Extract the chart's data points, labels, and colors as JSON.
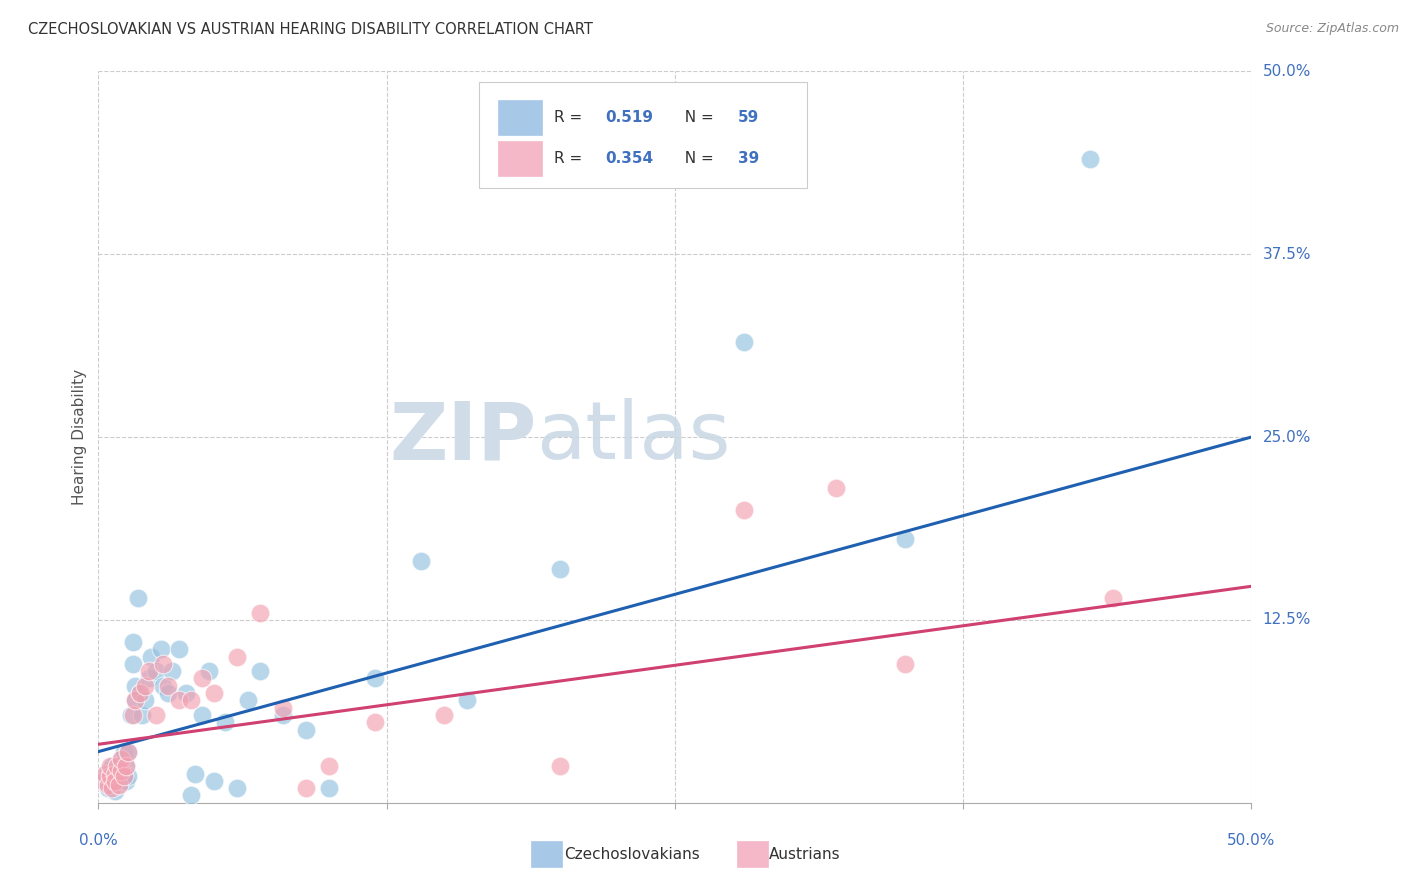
{
  "title": "CZECHOSLOVAKIAN VS AUSTRIAN HEARING DISABILITY CORRELATION CHART",
  "source": "Source: ZipAtlas.com",
  "ylabel": "Hearing Disability",
  "xlim": [
    0,
    0.5
  ],
  "ylim": [
    0,
    0.5
  ],
  "background_color": "#ffffff",
  "grid_color": "#cccccc",
  "blue_color": "#92c0e0",
  "pink_color": "#f4a0b0",
  "blue_line_color": "#2060b0",
  "pink_line_color": "#d04070",
  "legend_blue_color": "#a8c8e8",
  "legend_pink_color": "#f4b8c8",
  "tick_label_color": "#4070c0",
  "watermark_color": "#d0dce8",
  "czech_x": [
    0.002,
    0.003,
    0.004,
    0.004,
    0.005,
    0.005,
    0.006,
    0.006,
    0.007,
    0.007,
    0.008,
    0.008,
    0.009,
    0.009,
    0.01,
    0.01,
    0.011,
    0.011,
    0.012,
    0.012,
    0.013,
    0.013,
    0.014,
    0.015,
    0.015,
    0.016,
    0.016,
    0.017,
    0.018,
    0.019,
    0.02,
    0.022,
    0.023,
    0.025,
    0.027,
    0.028,
    0.03,
    0.032,
    0.035,
    0.038,
    0.04,
    0.042,
    0.045,
    0.048,
    0.05,
    0.055,
    0.06,
    0.065,
    0.07,
    0.08,
    0.09,
    0.1,
    0.12,
    0.14,
    0.16,
    0.2,
    0.28,
    0.35,
    0.43
  ],
  "czech_y": [
    0.015,
    0.018,
    0.01,
    0.022,
    0.012,
    0.02,
    0.015,
    0.025,
    0.018,
    0.008,
    0.022,
    0.012,
    0.018,
    0.025,
    0.015,
    0.03,
    0.02,
    0.035,
    0.015,
    0.025,
    0.018,
    0.035,
    0.06,
    0.095,
    0.11,
    0.07,
    0.08,
    0.14,
    0.075,
    0.06,
    0.07,
    0.085,
    0.1,
    0.09,
    0.105,
    0.08,
    0.075,
    0.09,
    0.105,
    0.075,
    0.005,
    0.02,
    0.06,
    0.09,
    0.015,
    0.055,
    0.01,
    0.07,
    0.09,
    0.06,
    0.05,
    0.01,
    0.085,
    0.165,
    0.07,
    0.16,
    0.315,
    0.18,
    0.44
  ],
  "austrian_x": [
    0.002,
    0.003,
    0.004,
    0.005,
    0.005,
    0.006,
    0.007,
    0.007,
    0.008,
    0.009,
    0.01,
    0.01,
    0.011,
    0.012,
    0.013,
    0.015,
    0.016,
    0.018,
    0.02,
    0.022,
    0.025,
    0.028,
    0.03,
    0.035,
    0.04,
    0.045,
    0.05,
    0.06,
    0.07,
    0.08,
    0.09,
    0.1,
    0.12,
    0.15,
    0.2,
    0.28,
    0.32,
    0.35,
    0.44
  ],
  "austrian_y": [
    0.015,
    0.02,
    0.012,
    0.018,
    0.025,
    0.01,
    0.02,
    0.015,
    0.025,
    0.012,
    0.022,
    0.03,
    0.018,
    0.025,
    0.035,
    0.06,
    0.07,
    0.075,
    0.08,
    0.09,
    0.06,
    0.095,
    0.08,
    0.07,
    0.07,
    0.085,
    0.075,
    0.1,
    0.13,
    0.065,
    0.01,
    0.025,
    0.055,
    0.06,
    0.025,
    0.2,
    0.215,
    0.095,
    0.14
  ],
  "blue_line_start_y": 0.035,
  "blue_line_end_y": 0.25,
  "pink_line_start_y": 0.04,
  "pink_line_end_y": 0.148
}
